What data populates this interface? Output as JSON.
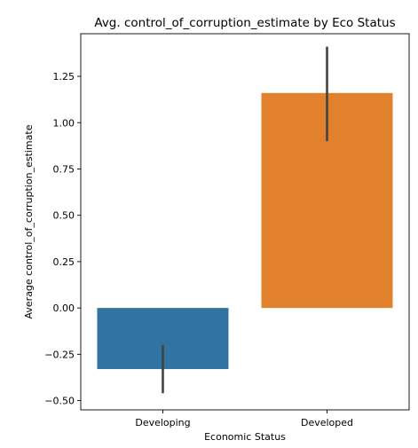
{
  "chart_data": {
    "type": "bar",
    "title": "Avg. control_of_corruption_estimate by Eco Status",
    "xlabel": "Economic Status",
    "ylabel": "Average control_of_corruption_estimate",
    "categories": [
      "Developing",
      "Developed"
    ],
    "values": [
      -0.33,
      1.16
    ],
    "error_low": [
      -0.46,
      0.9
    ],
    "error_high": [
      -0.2,
      1.41
    ],
    "colors": [
      "#3274a1",
      "#e1812c"
    ],
    "error_color": "#424242",
    "ylim": [
      -0.55,
      1.48
    ],
    "yticks": [
      -0.5,
      -0.25,
      0.0,
      0.25,
      0.5,
      0.75,
      1.0,
      1.25
    ],
    "ytick_labels": [
      "−0.50",
      "−0.25",
      "0.00",
      "0.25",
      "0.50",
      "0.75",
      "1.00",
      "1.25"
    ],
    "grid": false,
    "legend": "none"
  }
}
